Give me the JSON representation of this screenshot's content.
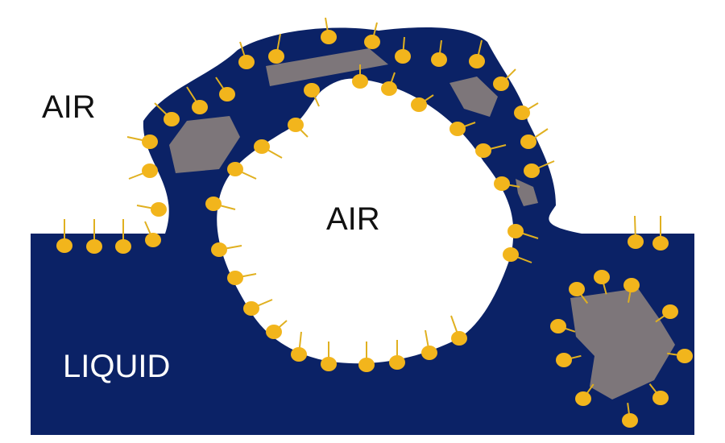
{
  "labels": {
    "air_outside": "AIR",
    "air_bubble": "AIR",
    "liquid": "LIQUID"
  },
  "colors": {
    "background": "#ffffff",
    "liquid": "#0b2266",
    "bubble": "#ffffff",
    "particle": "#7d767a",
    "surfactant_head": "#f2b51c",
    "surfactant_tail": "#e0b020",
    "text_dark": "#111111",
    "text_light": "#ffffff"
  }
}
